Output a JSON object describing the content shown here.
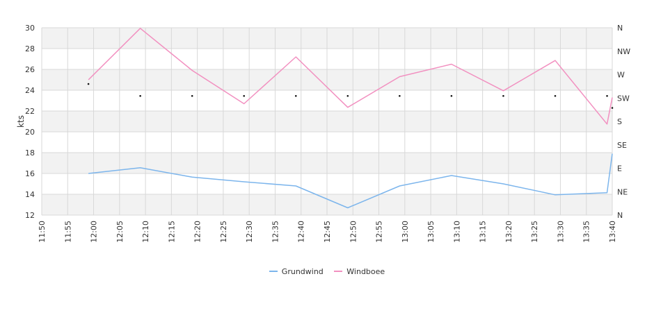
{
  "chart_data": {
    "type": "line",
    "ylabel": "kts",
    "ylim": [
      12,
      30
    ],
    "yticks": [
      12,
      14,
      16,
      18,
      20,
      22,
      24,
      26,
      28,
      30
    ],
    "right_axis_labels": [
      "N",
      "NE",
      "E",
      "SE",
      "S",
      "SW",
      "W",
      "NW",
      "N"
    ],
    "x_tick_labels": [
      "11:50",
      "11:55",
      "12:00",
      "12:05",
      "12:10",
      "12:15",
      "12:20",
      "12:25",
      "12:30",
      "12:35",
      "12:40",
      "12:45",
      "12:50",
      "12:55",
      "13:00",
      "13:05",
      "13:10",
      "13:15",
      "13:20",
      "13:25",
      "13:30",
      "13:35",
      "13:40"
    ],
    "xlim_minutes": [
      710,
      820
    ],
    "series": [
      {
        "name": "Grundwind",
        "color": "#7cb5ec",
        "x": [
          "11:59",
          "12:09",
          "12:19",
          "12:29",
          "12:39",
          "12:49",
          "12:59",
          "13:09",
          "13:19",
          "13:29",
          "13:39",
          "13:40"
        ],
        "values": [
          16.0,
          16.55,
          15.65,
          15.2,
          14.8,
          12.7,
          14.8,
          15.8,
          15.0,
          13.95,
          14.15,
          17.9
        ]
      },
      {
        "name": "Windboee",
        "color": "#f290c0",
        "x": [
          "11:59",
          "12:09",
          "12:19",
          "12:29",
          "12:39",
          "12:49",
          "12:59",
          "13:09",
          "13:19",
          "13:29",
          "13:39",
          "13:40"
        ],
        "values": [
          25.0,
          29.95,
          25.9,
          22.7,
          27.2,
          22.35,
          25.3,
          26.5,
          23.95,
          26.85,
          20.75,
          23.3
        ]
      },
      {
        "name": "direction",
        "x": [
          "11:59",
          "12:09",
          "12:19",
          "12:29",
          "12:39",
          "12:49",
          "12:59",
          "13:09",
          "13:19",
          "13:29",
          "13:39",
          "13:40"
        ],
        "values": [
          24.6,
          23.45,
          23.45,
          23.45,
          23.45,
          23.45,
          23.45,
          23.45,
          23.45,
          23.45,
          23.45,
          22.3
        ]
      }
    ],
    "legend": "bottom-center",
    "band_color": "#f2f2f2",
    "grid_color": "#d8d8d8"
  }
}
